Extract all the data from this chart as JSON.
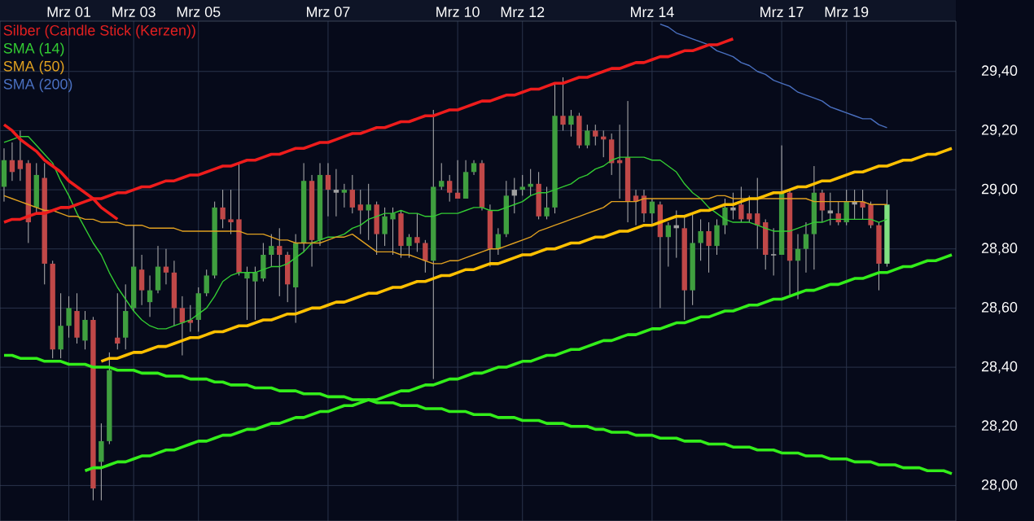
{
  "chart_data": {
    "type": "candlestick",
    "ylim": [
      27.88,
      29.57
    ],
    "categories": [
      null,
      null,
      null,
      null,
      null,
      null,
      null,
      null,
      "Mrz 01",
      null,
      null,
      null,
      null,
      null,
      null,
      null,
      "Mrz 03",
      null,
      null,
      null,
      null,
      null,
      null,
      null,
      "Mrz 05",
      null,
      null,
      null,
      null,
      null,
      null,
      null,
      null,
      null,
      null,
      null,
      null,
      null,
      null,
      null,
      "Mrz 07",
      null,
      null,
      null,
      null,
      null,
      null,
      null,
      null,
      null,
      null,
      null,
      null,
      null,
      null,
      null,
      "Mrz 10",
      null,
      null,
      null,
      null,
      null,
      null,
      null,
      "Mrz 12",
      null,
      null,
      null,
      null,
      null,
      null,
      null,
      null,
      null,
      null,
      null,
      null,
      null,
      null,
      null,
      "Mrz 14",
      null,
      null,
      null,
      null,
      null,
      null,
      null,
      null,
      null,
      null,
      null,
      null,
      null,
      null,
      null,
      "Mrz 17",
      null,
      null,
      null,
      null,
      null,
      null,
      null,
      "Mrz 19",
      null,
      null,
      null,
      null,
      null,
      null,
      null,
      null,
      null,
      null,
      null,
      null,
      null
    ],
    "yticks": [
      {
        "value": 28.0,
        "label": "28,00"
      },
      {
        "value": 28.2,
        "label": "28,20"
      },
      {
        "value": 28.4,
        "label": "28,40"
      },
      {
        "value": 28.6,
        "label": "28,60"
      },
      {
        "value": 28.8,
        "label": "28,80"
      },
      {
        "value": 29.0,
        "label": "29,00"
      },
      {
        "value": 29.2,
        "label": "29,20"
      },
      {
        "value": 29.4,
        "label": "29,40"
      }
    ],
    "grid": true,
    "legend": "top left",
    "series": [
      {
        "name": "Silber (Candle Stick (Kerzen))",
        "color": "#e02020",
        "ohlc": [
          [
            29.01,
            29.14,
            28.96,
            29.1
          ],
          [
            29.1,
            29.16,
            29.03,
            29.06
          ],
          [
            29.1,
            29.2,
            29.03,
            29.07
          ],
          [
            29.09,
            29.1,
            28.82,
            28.89
          ],
          [
            28.94,
            29.09,
            28.92,
            29.05
          ],
          [
            29.04,
            29.09,
            28.68,
            28.75
          ],
          [
            28.75,
            28.76,
            28.43,
            28.46
          ],
          [
            28.46,
            28.65,
            28.43,
            28.54
          ],
          [
            28.54,
            28.64,
            28.5,
            28.6
          ],
          [
            28.59,
            28.65,
            28.48,
            28.5
          ],
          [
            28.49,
            28.59,
            28.46,
            28.56
          ],
          [
            28.56,
            28.57,
            27.95,
            27.99
          ],
          [
            28.08,
            28.21,
            27.95,
            28.15
          ],
          [
            28.15,
            28.45,
            28.14,
            28.39
          ],
          [
            28.5,
            28.65,
            28.46,
            28.48
          ],
          [
            28.5,
            28.68,
            28.46,
            28.59
          ],
          [
            28.6,
            28.88,
            28.59,
            28.74
          ],
          [
            28.73,
            28.78,
            28.61,
            28.66
          ],
          [
            28.62,
            28.71,
            28.57,
            28.66
          ],
          [
            28.66,
            28.81,
            28.65,
            28.74
          ],
          [
            28.74,
            28.8,
            28.68,
            28.72
          ],
          [
            28.72,
            28.76,
            28.54,
            28.6
          ],
          [
            28.6,
            28.64,
            28.44,
            28.55
          ],
          [
            28.56,
            28.61,
            28.52,
            28.55
          ],
          [
            28.56,
            28.67,
            28.52,
            28.65
          ],
          [
            28.65,
            28.73,
            28.64,
            28.71
          ],
          [
            28.71,
            28.96,
            28.7,
            28.94
          ],
          [
            28.94,
            29.0,
            28.87,
            28.9
          ],
          [
            28.9,
            29.0,
            28.85,
            28.89
          ],
          [
            28.9,
            29.09,
            28.71,
            28.72
          ],
          [
            28.7,
            28.74,
            28.56,
            28.72
          ],
          [
            28.69,
            28.74,
            28.56,
            28.72
          ],
          [
            28.7,
            28.82,
            28.69,
            28.78
          ],
          [
            28.78,
            28.85,
            28.74,
            28.81
          ],
          [
            28.81,
            28.87,
            28.64,
            28.78
          ],
          [
            28.78,
            28.79,
            28.62,
            28.68
          ],
          [
            28.67,
            28.85,
            28.55,
            28.82
          ],
          [
            28.82,
            29.09,
            28.79,
            29.03
          ],
          [
            29.03,
            29.05,
            28.74,
            28.83
          ],
          [
            28.83,
            29.09,
            28.81,
            29.05
          ],
          [
            29.05,
            29.09,
            28.91,
            29.0
          ],
          [
            29.0,
            29.07,
            28.91,
            28.99
          ],
          [
            28.99,
            29.02,
            28.94,
            29.0
          ],
          [
            29.0,
            29.05,
            28.92,
            28.94
          ],
          [
            28.95,
            29.0,
            28.85,
            28.93
          ],
          [
            28.93,
            29.02,
            28.83,
            28.95
          ],
          [
            28.95,
            28.96,
            28.78,
            28.85
          ],
          [
            28.85,
            28.94,
            28.81,
            28.91
          ],
          [
            28.9,
            28.94,
            28.78,
            28.92
          ],
          [
            28.92,
            28.93,
            28.77,
            28.81
          ],
          [
            28.81,
            28.85,
            28.77,
            28.84
          ],
          [
            28.84,
            28.92,
            28.79,
            28.82
          ],
          [
            28.82,
            28.83,
            28.72,
            28.76
          ],
          [
            28.76,
            29.27,
            28.36,
            29.01
          ],
          [
            29.01,
            29.09,
            29.0,
            29.03
          ],
          [
            29.03,
            29.05,
            28.96,
            28.99
          ],
          [
            28.99,
            29.1,
            28.97,
            28.97
          ],
          [
            28.97,
            29.1,
            28.97,
            29.06
          ],
          [
            29.06,
            29.1,
            29.05,
            29.09
          ],
          [
            29.09,
            29.1,
            28.93,
            28.94
          ],
          [
            28.93,
            28.95,
            28.74,
            28.8
          ],
          [
            28.8,
            28.87,
            28.78,
            28.85
          ],
          [
            28.85,
            29.03,
            28.84,
            28.98
          ],
          [
            28.98,
            29.04,
            28.92,
            29.0
          ],
          [
            29.0,
            29.05,
            28.98,
            29.01
          ],
          [
            29.01,
            29.07,
            28.98,
            29.02
          ],
          [
            29.02,
            29.06,
            28.9,
            28.91
          ],
          [
            28.91,
            29.01,
            28.9,
            28.94
          ],
          [
            28.94,
            29.36,
            28.92,
            29.25
          ],
          [
            29.25,
            29.38,
            29.2,
            29.22
          ],
          [
            29.22,
            29.27,
            29.18,
            29.25
          ],
          [
            29.25,
            29.26,
            29.14,
            29.15
          ],
          [
            29.15,
            29.22,
            29.14,
            29.2
          ],
          [
            29.2,
            29.22,
            29.15,
            29.18
          ],
          [
            29.18,
            29.2,
            29.11,
            29.17
          ],
          [
            29.17,
            29.19,
            29.05,
            29.09
          ],
          [
            29.1,
            29.22,
            28.97,
            29.09
          ],
          [
            29.11,
            29.3,
            28.89,
            28.96
          ],
          [
            28.98,
            29.0,
            28.88,
            28.96
          ],
          [
            28.98,
            29.0,
            28.89,
            28.92
          ],
          [
            28.92,
            28.97,
            28.88,
            28.96
          ],
          [
            28.95,
            28.96,
            28.6,
            28.84
          ],
          [
            28.84,
            28.89,
            28.74,
            28.88
          ],
          [
            28.88,
            28.93,
            28.77,
            28.87
          ],
          [
            28.87,
            28.91,
            28.56,
            28.66
          ],
          [
            28.66,
            28.92,
            28.61,
            28.82
          ],
          [
            28.82,
            28.9,
            28.76,
            28.86
          ],
          [
            28.86,
            28.89,
            28.72,
            28.81
          ],
          [
            28.81,
            28.9,
            28.78,
            28.88
          ],
          [
            28.88,
            28.97,
            28.85,
            28.94
          ],
          [
            28.94,
            28.99,
            28.9,
            28.93
          ],
          [
            28.95,
            29.01,
            28.89,
            28.9
          ],
          [
            28.92,
            28.98,
            28.89,
            28.9
          ],
          [
            28.92,
            29.04,
            28.8,
            28.88
          ],
          [
            28.89,
            28.9,
            28.73,
            28.78
          ],
          [
            28.78,
            28.87,
            28.71,
            28.78
          ],
          [
            28.78,
            29.15,
            28.78,
            28.99
          ],
          [
            28.99,
            29.0,
            28.64,
            28.76
          ],
          [
            28.76,
            28.85,
            28.63,
            28.8
          ],
          [
            28.8,
            28.89,
            28.72,
            28.85
          ],
          [
            28.85,
            29.08,
            28.73,
            28.99
          ],
          [
            28.99,
            29.0,
            28.89,
            28.93
          ],
          [
            28.93,
            28.99,
            28.88,
            28.92
          ],
          [
            28.92,
            28.96,
            28.88,
            28.89
          ],
          [
            28.89,
            29.0,
            28.88,
            28.96
          ],
          [
            28.96,
            29.0,
            28.9,
            28.95
          ],
          [
            28.96,
            29.0,
            28.9,
            28.94
          ],
          [
            28.95,
            28.96,
            28.87,
            28.88
          ],
          [
            28.88,
            28.89,
            28.66,
            28.75
          ],
          [
            28.75,
            29.0,
            28.74,
            28.95
          ],
          null,
          null,
          null,
          null,
          null,
          null,
          null,
          null
        ],
        "colors": [
          "#3f9f3f",
          "#c04848",
          "#c04848",
          "#c04848",
          "#3f9f3f",
          "#c04848",
          "#c04848",
          "#3f9f3f",
          "#3f9f3f",
          "#c04848",
          "#3f9f3f",
          "#c04848",
          "#3f9f3f",
          "#3f9f3f",
          "#c04848",
          "#3f9f3f",
          "#3f9f3f",
          "#c04848",
          "#3f9f3f",
          "#3f9f3f",
          "#c04848",
          "#c04848",
          "#c04848",
          "#c04848",
          "#3f9f3f",
          "#3f9f3f",
          "#3f9f3f",
          "#c04848",
          "#c04848",
          "#c04848",
          "#3f9f3f",
          "#3f9f3f",
          "#3f9f3f",
          "#3f9f3f",
          "#c04848",
          "#c04848",
          "#3f9f3f",
          "#3f9f3f",
          "#c04848",
          "#3f9f3f",
          "#c04848",
          "#a0a0a0",
          "#3f9f3f",
          "#c04848",
          "#c04848",
          "#3f9f3f",
          "#c04848",
          "#3f9f3f",
          "#3f9f3f",
          "#c04848",
          "#3f9f3f",
          "#c04848",
          "#c04848",
          "#3f9f3f",
          "#3f9f3f",
          "#c04848",
          "#c04848",
          "#3f9f3f",
          "#3f9f3f",
          "#c04848",
          "#c04848",
          "#3f9f3f",
          "#3f9f3f",
          "#a0a0a0",
          "#3f9f3f",
          "#3f9f3f",
          "#c04848",
          "#3f9f3f",
          "#3f9f3f",
          "#c04848",
          "#3f9f3f",
          "#c04848",
          "#3f9f3f",
          "#c04848",
          "#c04848",
          "#c04848",
          "#c04848",
          "#c04848",
          "#c04848",
          "#c04848",
          "#3f9f3f",
          "#c04848",
          "#3f9f3f",
          "#a0a0a0",
          "#c04848",
          "#3f9f3f",
          "#3f9f3f",
          "#c04848",
          "#3f9f3f",
          "#3f9f3f",
          "#a0a0a0",
          "#c04848",
          "#c04848",
          "#c04848",
          "#c04848",
          "#a0a0a0",
          "#3f9f3f",
          "#c04848",
          "#3f9f3f",
          "#3f9f3f",
          "#3f9f3f",
          "#c04848",
          "#a0a0a0",
          "#c04848",
          "#3f9f3f",
          "#a0a0a0",
          "#c04848",
          "#c04848",
          "#c04848",
          "#80e080",
          null,
          null,
          null,
          null,
          null,
          null,
          null,
          null
        ]
      },
      {
        "type": "line",
        "name": "SMA (14)",
        "color": "#33cc33",
        "values": [
          29.16,
          29.17,
          29.18,
          29.18,
          29.15,
          29.12,
          29.09,
          29.03,
          28.98,
          28.92,
          28.87,
          28.82,
          28.78,
          28.72,
          28.67,
          28.63,
          28.59,
          28.56,
          28.54,
          28.53,
          28.53,
          28.54,
          28.55,
          28.56,
          28.58,
          28.6,
          28.64,
          28.69,
          28.71,
          28.72,
          28.72,
          28.72,
          28.73,
          28.74,
          28.74,
          28.75,
          28.77,
          28.79,
          28.82,
          28.83,
          28.84,
          28.84,
          28.85,
          28.87,
          28.88,
          28.9,
          28.91,
          28.92,
          28.92,
          28.93,
          28.92,
          28.92,
          28.91,
          28.91,
          28.92,
          28.92,
          28.92,
          28.93,
          28.94,
          28.94,
          28.93,
          28.93,
          28.94,
          28.95,
          28.96,
          28.98,
          28.99,
          28.99,
          29.0,
          29.01,
          29.02,
          29.04,
          29.05,
          29.07,
          29.08,
          29.1,
          29.11,
          29.11,
          29.11,
          29.11,
          29.1,
          29.1,
          29.08,
          29.06,
          29.02,
          28.99,
          28.97,
          28.94,
          28.92,
          28.9,
          28.89,
          28.89,
          28.89,
          28.88,
          28.87,
          28.86,
          28.86,
          28.86,
          28.87,
          28.88,
          28.89,
          28.89,
          28.9,
          28.9,
          28.9,
          28.9,
          28.9,
          28.9,
          28.89,
          28.9,
          null,
          null,
          null,
          null,
          null,
          null,
          null,
          null
        ]
      },
      {
        "type": "line",
        "name": "SMA (50)",
        "color": "#e0a020",
        "values": [
          28.98,
          28.97,
          28.96,
          28.95,
          28.94,
          28.93,
          28.93,
          28.92,
          28.91,
          28.91,
          28.9,
          28.9,
          28.89,
          28.89,
          28.89,
          28.88,
          28.88,
          28.88,
          28.87,
          28.87,
          28.87,
          28.87,
          28.86,
          28.86,
          28.86,
          28.86,
          28.86,
          28.86,
          28.86,
          28.86,
          28.85,
          28.85,
          28.85,
          28.84,
          28.83,
          28.83,
          28.82,
          28.82,
          28.82,
          28.82,
          28.83,
          28.84,
          28.84,
          28.85,
          28.83,
          28.81,
          28.79,
          28.79,
          28.79,
          28.78,
          28.78,
          28.77,
          28.76,
          28.75,
          28.75,
          28.76,
          28.76,
          28.77,
          28.78,
          28.79,
          28.8,
          28.8,
          28.81,
          28.82,
          28.83,
          28.84,
          28.86,
          28.87,
          28.88,
          28.89,
          28.9,
          28.91,
          28.92,
          28.93,
          28.94,
          28.96,
          28.96,
          28.96,
          28.96,
          28.97,
          28.97,
          28.97,
          28.97,
          28.97,
          28.97,
          28.97,
          28.97,
          28.97,
          28.98,
          28.98,
          28.97,
          28.97,
          28.97,
          28.97,
          28.97,
          28.97,
          28.97,
          28.97,
          28.97,
          28.97,
          28.96,
          28.96,
          28.96,
          28.96,
          28.96,
          28.96,
          28.96,
          28.95,
          28.95,
          28.95,
          null,
          null,
          null,
          null,
          null,
          null,
          null,
          null
        ]
      },
      {
        "type": "line",
        "name": "SMA (200)",
        "color": "#4a70c0",
        "values": [
          null,
          null,
          null,
          null,
          null,
          null,
          null,
          null,
          null,
          null,
          null,
          null,
          null,
          null,
          null,
          null,
          null,
          null,
          null,
          null,
          null,
          null,
          null,
          null,
          null,
          null,
          null,
          null,
          null,
          null,
          null,
          null,
          null,
          null,
          null,
          null,
          null,
          null,
          null,
          null,
          null,
          null,
          null,
          null,
          null,
          null,
          null,
          null,
          null,
          null,
          null,
          null,
          null,
          null,
          null,
          null,
          null,
          null,
          null,
          null,
          null,
          null,
          null,
          null,
          null,
          null,
          null,
          null,
          null,
          null,
          null,
          null,
          null,
          null,
          null,
          null,
          null,
          null,
          null,
          null,
          null,
          29.56,
          29.55,
          29.53,
          29.52,
          29.51,
          29.5,
          29.49,
          29.47,
          29.46,
          29.45,
          29.43,
          29.42,
          29.4,
          29.39,
          29.37,
          29.36,
          29.35,
          29.33,
          29.32,
          29.31,
          29.3,
          29.28,
          29.27,
          29.26,
          29.25,
          29.24,
          29.24,
          29.22,
          29.21,
          null,
          null,
          null,
          null,
          null,
          null,
          null,
          null
        ]
      },
      {
        "type": "line",
        "color": "#ee1c1c",
        "values": [
          28.89,
          28.9,
          28.9,
          28.91,
          28.92,
          28.92,
          28.93,
          28.94,
          28.94,
          28.95,
          28.96,
          28.97,
          28.97,
          28.98,
          28.99,
          28.99,
          29.0,
          29.01,
          29.01,
          29.02,
          29.03,
          29.03,
          29.04,
          29.05,
          29.05,
          29.06,
          29.07,
          29.08,
          29.08,
          29.09,
          29.1,
          29.1,
          29.11,
          29.12,
          29.12,
          29.13,
          29.14,
          29.14,
          29.15,
          29.16,
          29.16,
          29.17,
          29.18,
          29.19,
          29.19,
          29.2,
          29.21,
          29.21,
          29.22,
          29.23,
          29.23,
          29.24,
          29.25,
          29.25,
          29.26,
          29.27,
          29.27,
          29.28,
          29.29,
          29.3,
          29.3,
          29.31,
          29.32,
          29.32,
          29.33,
          29.34,
          29.34,
          29.35,
          29.36,
          29.36,
          29.37,
          29.38,
          29.38,
          29.39,
          29.4,
          29.41,
          29.41,
          29.42,
          29.43,
          29.43,
          29.44,
          29.45,
          29.45,
          29.46,
          29.47,
          29.47,
          29.48,
          29.49,
          29.49,
          29.5,
          29.51,
          null,
          null,
          null,
          null,
          null,
          null,
          null,
          null,
          null,
          null,
          null,
          null,
          null,
          null,
          null,
          null,
          null,
          null,
          null,
          null,
          null,
          null,
          null,
          null,
          null,
          null,
          null
        ]
      },
      {
        "type": "line",
        "color": "#ee1c1c",
        "values": [
          29.22,
          29.2,
          29.17,
          29.15,
          29.13,
          29.1,
          29.08,
          29.06,
          29.03,
          29.01,
          28.99,
          28.97,
          28.94,
          28.92,
          28.9,
          null,
          null,
          null,
          null,
          null,
          null,
          null,
          null,
          null,
          null,
          null,
          null,
          null,
          null,
          null,
          null,
          null,
          null,
          null,
          null,
          null,
          null,
          null,
          null,
          null,
          null,
          null,
          null,
          null,
          null,
          null,
          null,
          null,
          null,
          null,
          null,
          null,
          null,
          null,
          null,
          null,
          null,
          null,
          null,
          null,
          null,
          null,
          null,
          null,
          null,
          null,
          null,
          null,
          null,
          null,
          null,
          null,
          null,
          null,
          null,
          null,
          null,
          null,
          null,
          null,
          null,
          null,
          null,
          null,
          null,
          null,
          null,
          null,
          null,
          null,
          null,
          null,
          null,
          null,
          null,
          null,
          null,
          null,
          null,
          null,
          null,
          null,
          null,
          null,
          null,
          null,
          null,
          null,
          null,
          null,
          null,
          null,
          null,
          null,
          null,
          null,
          null,
          null
        ]
      },
      {
        "type": "line",
        "color": "#ffc000",
        "values": [
          null,
          null,
          null,
          null,
          null,
          null,
          null,
          null,
          null,
          null,
          null,
          null,
          28.42,
          28.43,
          28.43,
          28.44,
          28.45,
          28.45,
          28.46,
          28.47,
          28.47,
          28.48,
          28.49,
          28.5,
          28.5,
          28.51,
          28.52,
          28.52,
          28.53,
          28.54,
          28.54,
          28.55,
          28.56,
          28.56,
          28.57,
          28.58,
          28.58,
          28.59,
          28.6,
          28.6,
          28.61,
          28.62,
          28.62,
          28.63,
          28.64,
          28.65,
          28.65,
          28.66,
          28.67,
          28.67,
          28.68,
          28.69,
          28.69,
          28.7,
          28.71,
          28.71,
          28.72,
          28.73,
          28.73,
          28.74,
          28.75,
          28.75,
          28.76,
          28.77,
          28.78,
          28.78,
          28.79,
          28.8,
          28.8,
          28.81,
          28.82,
          28.82,
          28.83,
          28.84,
          28.84,
          28.85,
          28.86,
          28.86,
          28.87,
          28.88,
          28.88,
          28.89,
          28.9,
          28.91,
          28.91,
          28.92,
          28.93,
          28.93,
          28.94,
          28.95,
          28.95,
          28.96,
          28.97,
          28.97,
          28.98,
          28.99,
          28.99,
          29.0,
          29.01,
          29.01,
          29.02,
          29.03,
          29.03,
          29.04,
          29.05,
          29.06,
          29.06,
          29.07,
          29.08,
          29.08,
          29.09,
          29.1,
          29.1,
          29.11,
          29.12,
          29.12,
          29.13,
          29.14
        ]
      },
      {
        "type": "line",
        "color": "#33ee1a",
        "values": [
          null,
          null,
          null,
          null,
          null,
          null,
          null,
          null,
          null,
          null,
          28.05,
          28.06,
          28.06,
          28.07,
          28.08,
          28.08,
          28.09,
          28.1,
          28.1,
          28.11,
          28.12,
          28.12,
          28.13,
          28.14,
          28.15,
          28.15,
          28.16,
          28.17,
          28.17,
          28.18,
          28.19,
          28.19,
          28.2,
          28.21,
          28.21,
          28.22,
          28.23,
          28.23,
          28.24,
          28.25,
          28.25,
          28.26,
          28.27,
          28.27,
          28.28,
          28.29,
          28.29,
          28.3,
          28.31,
          28.32,
          28.32,
          28.33,
          28.34,
          28.34,
          28.35,
          28.36,
          28.36,
          28.37,
          28.38,
          28.38,
          28.39,
          28.4,
          28.4,
          28.41,
          28.42,
          28.42,
          28.43,
          28.44,
          28.44,
          28.45,
          28.46,
          28.46,
          28.47,
          28.48,
          28.49,
          28.49,
          28.5,
          28.51,
          28.51,
          28.52,
          28.53,
          28.53,
          28.54,
          28.55,
          28.55,
          28.56,
          28.57,
          28.57,
          28.58,
          28.59,
          28.59,
          28.6,
          28.61,
          28.61,
          28.62,
          28.63,
          28.63,
          28.64,
          28.65,
          28.66,
          28.66,
          28.67,
          28.68,
          28.68,
          28.69,
          28.7,
          28.7,
          28.71,
          28.72,
          28.72,
          28.73,
          28.74,
          28.74,
          28.75,
          28.76,
          28.76,
          28.77,
          28.78
        ]
      },
      {
        "type": "line",
        "color": "#33ee1a",
        "values": [
          28.44,
          28.44,
          28.43,
          28.43,
          28.43,
          28.42,
          28.42,
          28.42,
          28.41,
          28.41,
          28.41,
          28.4,
          28.4,
          28.4,
          28.39,
          28.39,
          28.39,
          28.38,
          28.38,
          28.38,
          28.37,
          28.37,
          28.37,
          28.36,
          28.36,
          28.36,
          28.35,
          28.35,
          28.34,
          28.34,
          28.34,
          28.33,
          28.33,
          28.33,
          28.32,
          28.32,
          28.32,
          28.31,
          28.31,
          28.31,
          28.3,
          28.3,
          28.3,
          28.29,
          28.29,
          28.29,
          28.28,
          28.28,
          28.28,
          28.27,
          28.27,
          28.27,
          28.26,
          28.26,
          28.26,
          28.25,
          28.25,
          28.25,
          28.24,
          28.24,
          28.24,
          28.23,
          28.23,
          28.23,
          28.22,
          28.22,
          28.22,
          28.21,
          28.21,
          28.21,
          28.2,
          28.2,
          28.2,
          28.19,
          28.19,
          28.18,
          28.18,
          28.18,
          28.17,
          28.17,
          28.17,
          28.16,
          28.16,
          28.16,
          28.15,
          28.15,
          28.15,
          28.14,
          28.14,
          28.14,
          28.13,
          28.13,
          28.13,
          28.12,
          28.12,
          28.12,
          28.11,
          28.11,
          28.11,
          28.1,
          28.1,
          28.1,
          28.09,
          28.09,
          28.09,
          28.08,
          28.08,
          28.08,
          28.07,
          28.07,
          28.07,
          28.06,
          28.06,
          28.06,
          28.05,
          28.05,
          28.05,
          28.04
        ]
      }
    ]
  }
}
